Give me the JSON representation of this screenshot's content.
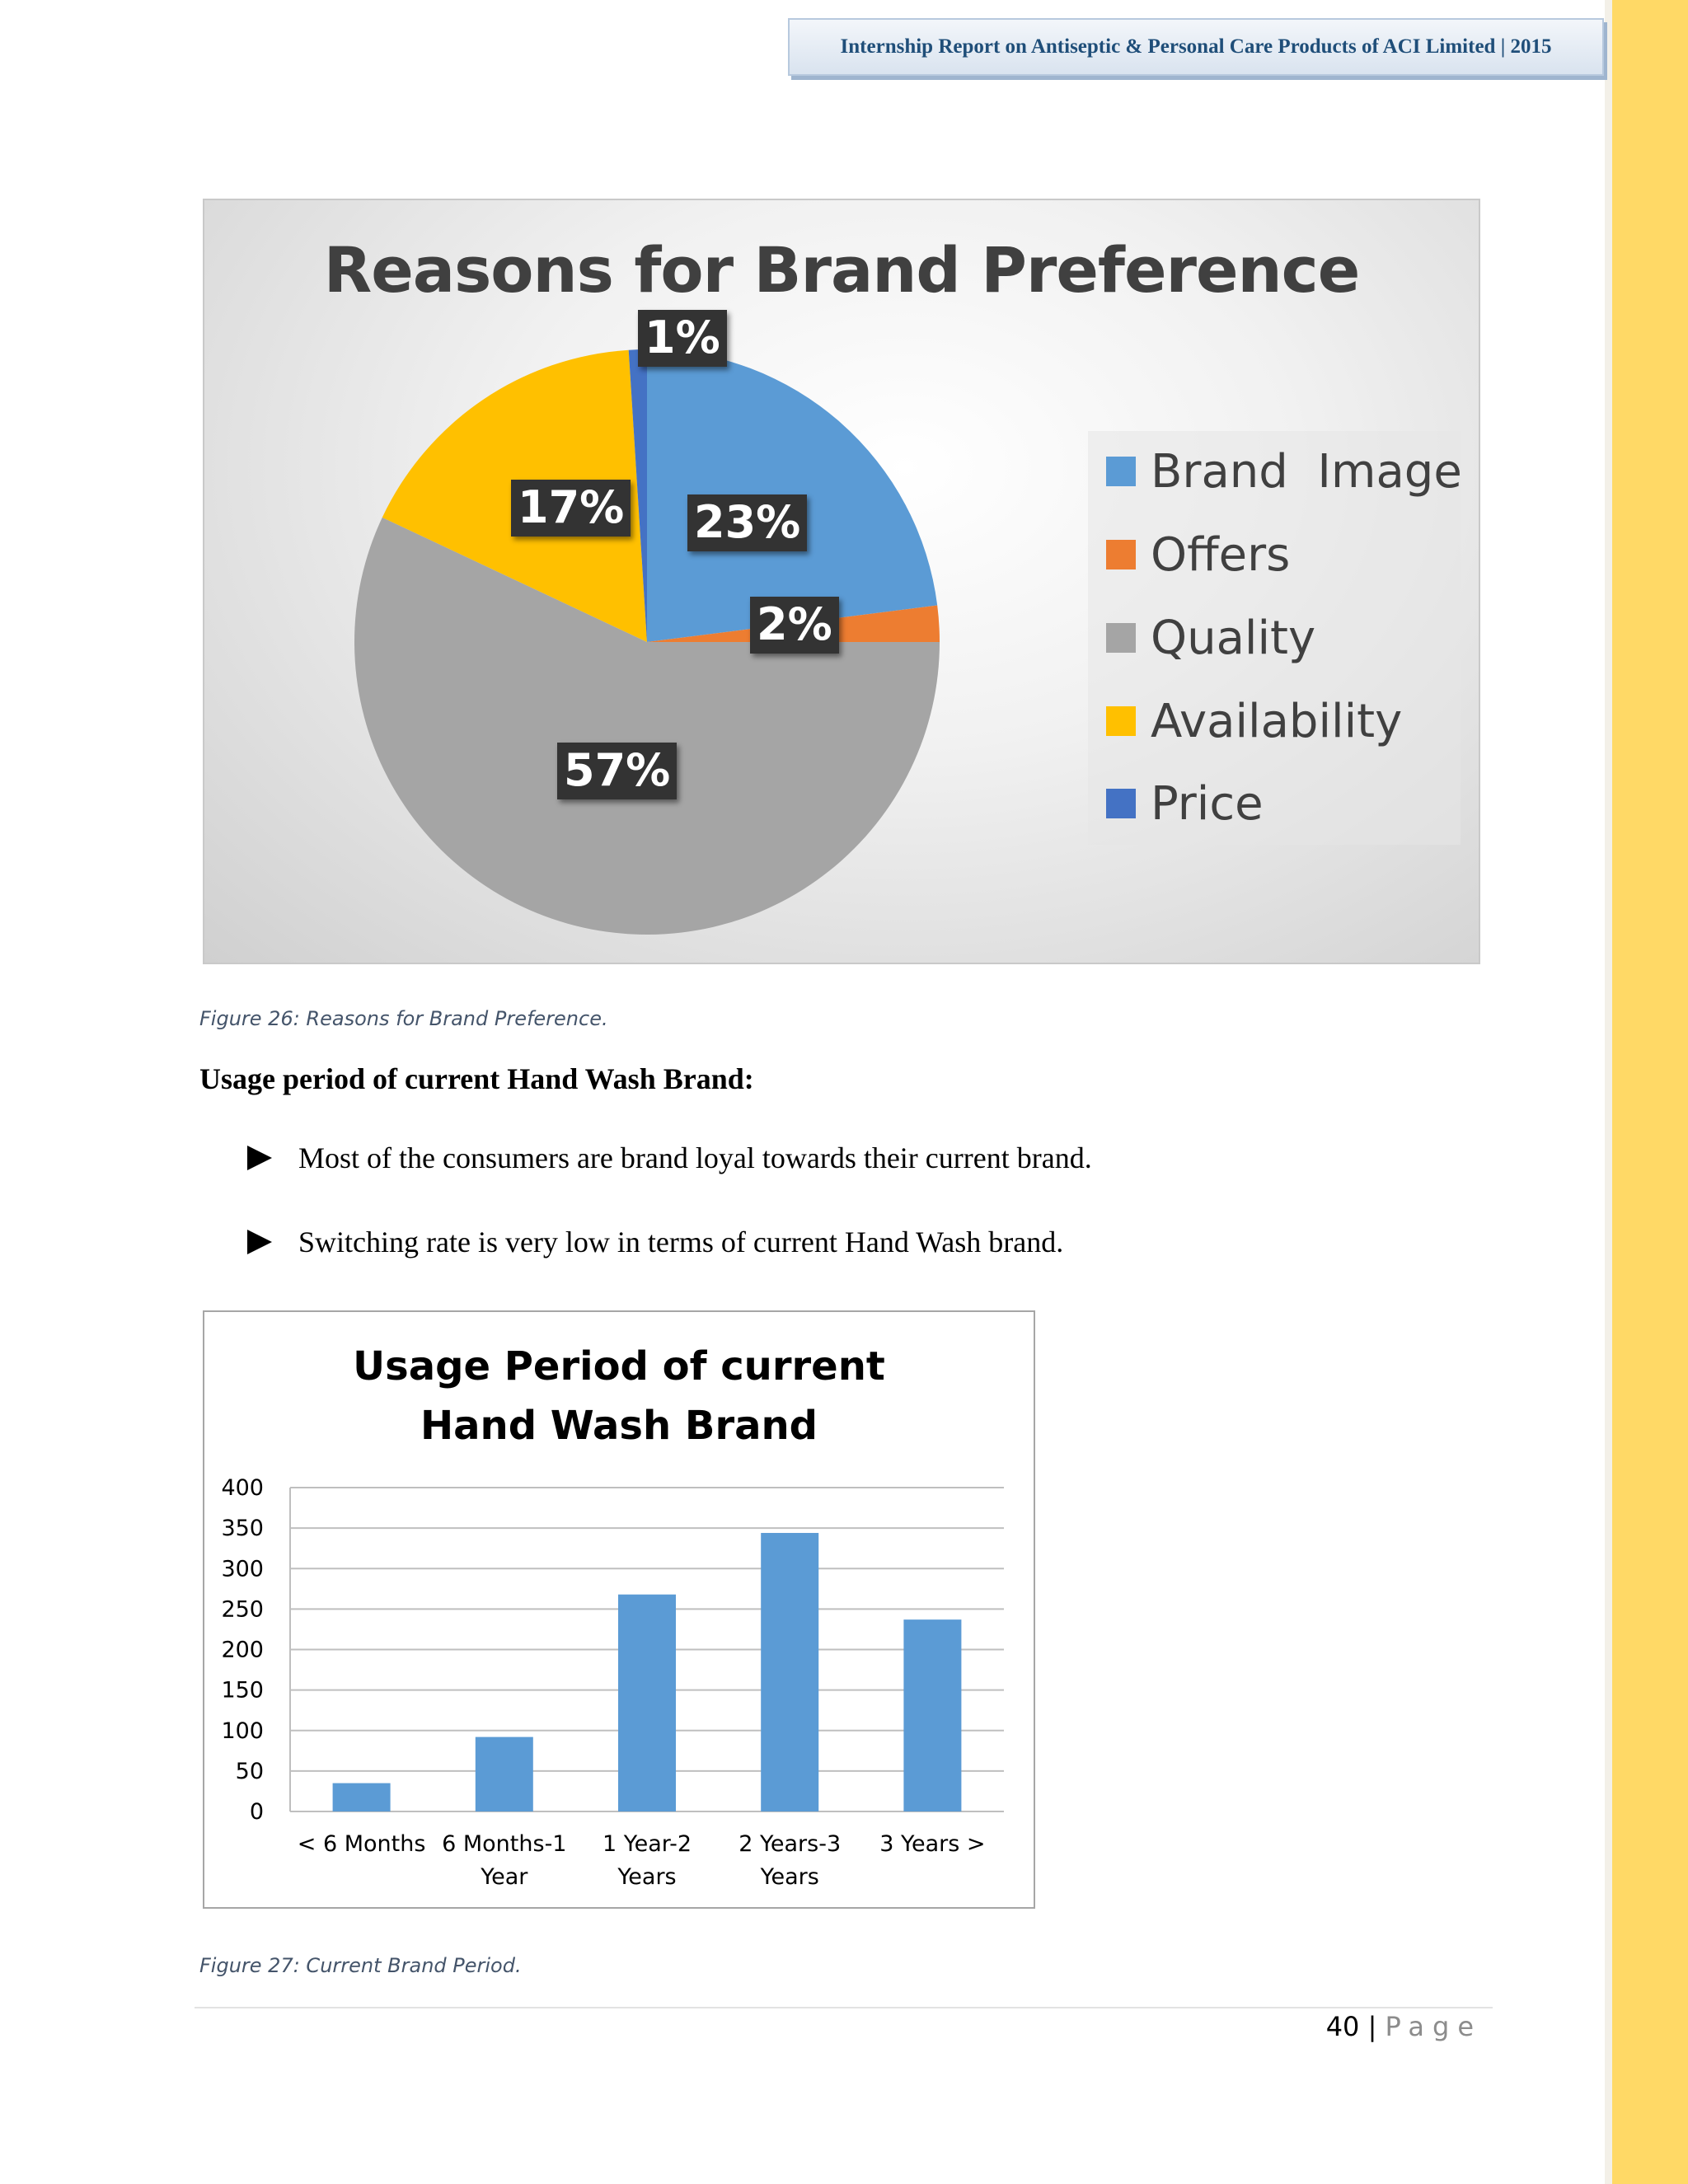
{
  "header": {
    "text": "Internship Report on Antiseptic & Personal Care Products of ACI Limited | 2015"
  },
  "pie_chart": {
    "title": "Reasons for Brand Preference",
    "labels": [
      "23%",
      "2%",
      "57%",
      "17%",
      "1%"
    ],
    "legend": [
      "Brand  Image",
      "Offers",
      "Quality",
      "Availability",
      "Price"
    ]
  },
  "figure26_caption": "Figure 26: Reasons for Brand Preference.",
  "section": {
    "heading": "Usage period of current Hand Wash Brand:",
    "bullets": [
      "Most of the consumers are brand loyal towards their current brand.",
      "Switching rate is very low in terms of current Hand Wash brand."
    ]
  },
  "bar_chart": {
    "title_line1": "Usage Period of current",
    "title_line2": "Hand Wash Brand",
    "y_ticks": [
      "400",
      "350",
      "300",
      "250",
      "200",
      "150",
      "100",
      "50",
      "0"
    ],
    "x_labels": [
      [
        "< 6 Months",
        ""
      ],
      [
        "6 Months-1",
        "Year"
      ],
      [
        "1 Year-2",
        "Years"
      ],
      [
        "2 Years-3",
        "Years"
      ],
      [
        "3 Years >",
        ""
      ]
    ]
  },
  "figure27_caption": "Figure 27: Current Brand Period.",
  "footer": {
    "page_number": "40",
    "separator": "|",
    "page_word": "Page"
  },
  "chart_data": [
    {
      "type": "pie",
      "title": "Reasons for Brand Preference",
      "categories": [
        "Brand  Image",
        "Offers",
        "Quality",
        "Availability",
        "Price"
      ],
      "values": [
        23,
        2,
        57,
        17,
        1
      ],
      "colors": [
        "#5b9bd5",
        "#ed7d31",
        "#a5a5a5",
        "#ffc000",
        "#4472c4"
      ],
      "legend": "right"
    },
    {
      "type": "bar",
      "title": "Usage Period of current Hand Wash Brand",
      "categories": [
        "< 6 Months",
        "6 Months-1 Year",
        "1 Year-2 Years",
        "2 Years-3 Years",
        "3 Years >"
      ],
      "values": [
        35,
        92,
        268,
        344,
        237
      ],
      "ylim": [
        0,
        400
      ],
      "ystep": 50,
      "grid": true,
      "color": "#5b9bd5"
    }
  ]
}
